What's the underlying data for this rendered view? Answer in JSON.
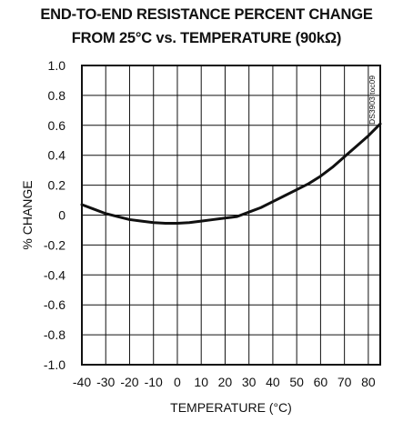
{
  "chart_data": {
    "type": "line",
    "title": "END-TO-END RESISTANCE PERCENT CHANGE",
    "subtitle": "FROM 25°C vs. TEMPERATURE (90kΩ)",
    "xlabel": "TEMPERATURE (°C)",
    "ylabel": "% CHANGE",
    "xlim": [
      -40,
      85
    ],
    "ylim": [
      -1.0,
      1.0
    ],
    "grid": true,
    "annotation": "DS3903 toc09",
    "x_ticks": [
      -40,
      -30,
      -20,
      -10,
      0,
      10,
      20,
      30,
      40,
      50,
      60,
      70,
      80
    ],
    "x_tick_labels": [
      "-40",
      "-30",
      "-20",
      "-10",
      "0",
      "10",
      "20",
      "30",
      "40",
      "50",
      "60",
      "70",
      "80"
    ],
    "y_ticks": [
      1.0,
      0.8,
      0.6,
      0.4,
      0.2,
      0,
      -0.2,
      -0.4,
      -0.6,
      -0.8,
      -1.0
    ],
    "y_tick_labels": [
      "1.0",
      "0.8",
      "0.6",
      "0.4",
      "0.2",
      "0",
      "-0.2",
      "-0.4",
      "-0.6",
      "-0.8",
      "-1.0"
    ],
    "series": [
      {
        "x": [
          -40,
          -35,
          -30,
          -25,
          -20,
          -15,
          -10,
          -5,
          0,
          5,
          10,
          15,
          20,
          25,
          30,
          35,
          40,
          45,
          50,
          55,
          60,
          65,
          70,
          75,
          80,
          85
        ],
        "y": [
          0.07,
          0.04,
          0.01,
          -0.01,
          -0.03,
          -0.04,
          -0.05,
          -0.055,
          -0.055,
          -0.05,
          -0.04,
          -0.03,
          -0.02,
          -0.01,
          0.02,
          0.05,
          0.09,
          0.13,
          0.17,
          0.21,
          0.26,
          0.32,
          0.39,
          0.46,
          0.53,
          0.61
        ]
      }
    ]
  }
}
